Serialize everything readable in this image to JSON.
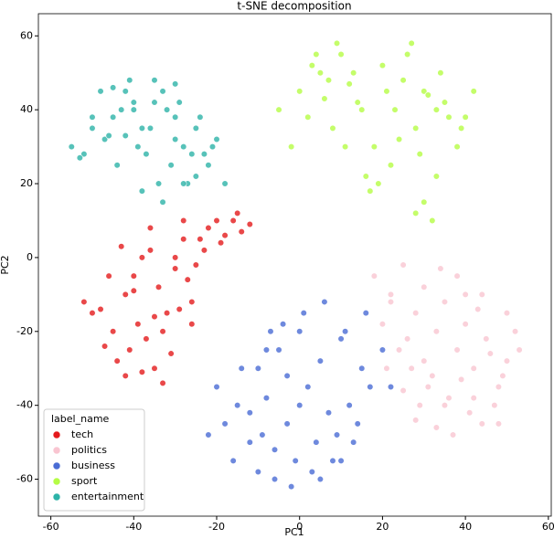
{
  "chart_data": {
    "type": "scatter",
    "title": "t-SNE decomposition",
    "x_label": "PC1",
    "y_label": "PC2",
    "xlim": [
      -63,
      60.7
    ],
    "ylim": [
      -70,
      66
    ],
    "xticks": [
      -60,
      -40,
      -20,
      0,
      20,
      40,
      60
    ],
    "yticks": [
      -60,
      -40,
      -20,
      0,
      20,
      40,
      60
    ],
    "grid": false,
    "legend_title": "label_name",
    "legend_corner": "lower left",
    "series": [
      {
        "name": "tech",
        "color": "#e41a1c",
        "x": [
          -45,
          -42,
          -40,
          -38,
          -36,
          -34,
          -32,
          -30,
          -28,
          -26,
          -44,
          -41,
          -39,
          -37,
          -35,
          -33,
          -31,
          -29,
          -27,
          -25,
          -48,
          -46,
          -43,
          -36,
          -30,
          -24,
          -22,
          -20,
          -18,
          -15,
          -12,
          -28,
          -33,
          -38,
          -42,
          -47,
          -50,
          -52,
          -40,
          -35,
          -26,
          -23,
          -19,
          -16,
          -14
        ],
        "y": [
          -20,
          -10,
          -5,
          0,
          2,
          -8,
          -15,
          -3,
          5,
          -12,
          -28,
          -25,
          -18,
          -22,
          -30,
          -20,
          -26,
          -14,
          -6,
          -2,
          -14,
          -5,
          3,
          8,
          0,
          5,
          8,
          10,
          6,
          12,
          9,
          10,
          -34,
          -31,
          -32,
          -24,
          -15,
          -12,
          -9,
          -16,
          -18,
          2,
          4,
          10,
          7
        ]
      },
      {
        "name": "politics",
        "color": "#f9c5d1",
        "x": [
          18,
          22,
          25,
          28,
          30,
          33,
          35,
          38,
          40,
          42,
          45,
          48,
          50,
          52,
          20,
          24,
          27,
          31,
          36,
          41,
          44,
          47,
          50,
          38,
          34,
          30,
          26,
          22,
          40,
          43,
          46,
          49,
          35,
          32,
          28,
          25,
          21,
          53,
          37,
          42,
          48,
          44,
          39,
          29,
          33
        ],
        "y": [
          -5,
          -10,
          -2,
          -15,
          -8,
          -20,
          -12,
          -25,
          -18,
          -30,
          -22,
          -35,
          -28,
          -20,
          -18,
          -25,
          -30,
          -35,
          -38,
          -42,
          -45,
          -40,
          -15,
          -5,
          -3,
          -28,
          -22,
          -12,
          -10,
          -14,
          -26,
          -32,
          -40,
          -32,
          -44,
          -36,
          -30,
          -25,
          -48,
          -38,
          -45,
          -10,
          -33,
          -40,
          -46
        ]
      },
      {
        "name": "business",
        "color": "#4a6cd4",
        "x": [
          -20,
          -15,
          -10,
          -5,
          0,
          5,
          10,
          15,
          20,
          -18,
          -12,
          -8,
          -3,
          2,
          7,
          12,
          17,
          22,
          -16,
          -10,
          -6,
          -1,
          4,
          9,
          14,
          -14,
          -8,
          -4,
          1,
          6,
          11,
          16,
          -12,
          -6,
          -2,
          3,
          8,
          13,
          -22,
          -9,
          0,
          5,
          -3,
          10,
          -7
        ],
        "y": [
          -35,
          -40,
          -30,
          -25,
          -20,
          -28,
          -22,
          -30,
          -25,
          -45,
          -50,
          -38,
          -45,
          -35,
          -42,
          -40,
          -35,
          -35,
          -55,
          -58,
          -52,
          -55,
          -50,
          -48,
          -45,
          -30,
          -25,
          -18,
          -15,
          -12,
          -20,
          -15,
          -42,
          -60,
          -62,
          -58,
          -55,
          -50,
          -48,
          -48,
          -40,
          -60,
          -32,
          -55,
          -20
        ]
      },
      {
        "name": "sport",
        "color": "#b5fc45",
        "x": [
          0,
          5,
          10,
          15,
          20,
          25,
          30,
          35,
          40,
          2,
          8,
          12,
          18,
          22,
          28,
          33,
          38,
          42,
          4,
          9,
          14,
          19,
          24,
          29,
          34,
          39,
          -5,
          -2,
          6,
          11,
          16,
          21,
          26,
          31,
          36,
          3,
          13,
          23,
          33,
          28,
          30,
          32,
          17,
          7,
          27
        ],
        "y": [
          45,
          50,
          55,
          40,
          52,
          48,
          45,
          42,
          38,
          38,
          35,
          47,
          30,
          25,
          35,
          40,
          30,
          45,
          55,
          58,
          42,
          20,
          32,
          28,
          50,
          35,
          40,
          30,
          43,
          30,
          22,
          45,
          55,
          44,
          38,
          52,
          50,
          40,
          22,
          12,
          15,
          10,
          18,
          48,
          58
        ]
      },
      {
        "name": "entertainment",
        "color": "#2db3a8",
        "x": [
          -55,
          -50,
          -45,
          -40,
          -35,
          -30,
          -25,
          -20,
          -52,
          -48,
          -43,
          -38,
          -33,
          -28,
          -23,
          -47,
          -42,
          -37,
          -32,
          -27,
          -22,
          -44,
          -39,
          -34,
          -29,
          -24,
          -41,
          -36,
          -31,
          -26,
          -21,
          -53,
          -46,
          -40,
          -35,
          -30,
          -25,
          -38,
          -33,
          -28,
          -50,
          -45,
          -42,
          -30,
          -18
        ],
        "y": [
          30,
          35,
          38,
          40,
          42,
          38,
          35,
          32,
          28,
          45,
          40,
          35,
          45,
          30,
          28,
          32,
          45,
          28,
          40,
          20,
          25,
          25,
          30,
          20,
          42,
          38,
          48,
          35,
          25,
          28,
          30,
          27,
          33,
          42,
          48,
          47,
          22,
          18,
          15,
          20,
          38,
          46,
          33,
          32,
          20
        ]
      }
    ]
  }
}
